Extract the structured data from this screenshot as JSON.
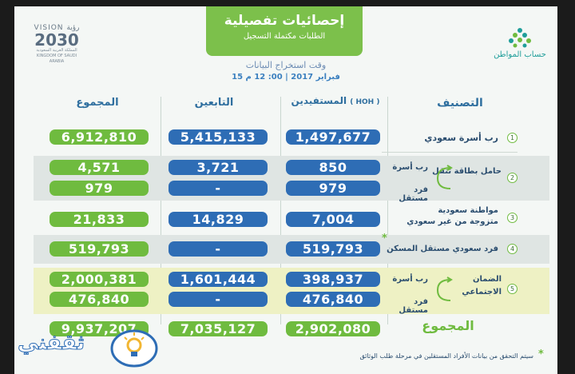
{
  "header": {
    "title": "إحصائيات تفصيلية",
    "subtitle": "الطلبات مكتملة التسجيل",
    "time_label": "وقت استخراج البيانات",
    "time_value": "15 فبراير 2017 | 00: 12 م"
  },
  "vision": {
    "top": "VISION رؤية",
    "year": "2030",
    "sub_ar": "المملكة العربية السعودية",
    "sub_en": "KINGDOM OF SAUDI ARABIA"
  },
  "logo": {
    "text": "حساب المواطن"
  },
  "columns": {
    "classification": "التصنيف",
    "beneficiaries": "المستفيدين",
    "hoh": "( HOH )",
    "dependents": "التابعين",
    "total": "المجموع"
  },
  "rows": [
    {
      "num": "1",
      "label": "رب أسرة سعودي",
      "beneficiaries": "1,497,677",
      "dependents": "5,415,133",
      "total": "6,912,810"
    },
    {
      "num": "2",
      "label": "حامل بطاقة تنقل",
      "sub1": "رب أسرة",
      "sub2": "فرد مستقل",
      "beneficiaries_a": "850",
      "dependents_a": "3,721",
      "total_a": "4,571",
      "beneficiaries_b": "979",
      "dependents_b": "-",
      "total_b": "979"
    },
    {
      "num": "3",
      "label1": "مواطنة سعودية",
      "label2": "متزوجة من غير سعودي",
      "beneficiaries": "7,004",
      "dependents": "14,829",
      "total": "21,833"
    },
    {
      "num": "4",
      "label": "فرد سعودي مستقل المسكن",
      "star": "*",
      "beneficiaries": "519,793",
      "dependents": "-",
      "total": "519,793"
    },
    {
      "num": "5",
      "label1": "الضمان",
      "label2": "الاجتماعي",
      "sub1": "رب أسرة",
      "sub2": "فرد مستقل",
      "beneficiaries_a": "398,937",
      "dependents_a": "1,601,444",
      "total_a": "2,000,381",
      "beneficiaries_b": "476,840",
      "dependents_b": "-",
      "total_b": "476,840"
    }
  ],
  "totals": {
    "label": "المجموع",
    "beneficiaries": "2,902,080",
    "dependents": "7,035,127",
    "total": "9,937,207"
  },
  "note": {
    "star": "*",
    "text": "سيتم التحقق من بيانات الأفراد المستقلين في مرحلة طلب الوثائق"
  },
  "watermark": {
    "text": "ثقفني"
  },
  "colors": {
    "green": "#6fbb3f",
    "blue": "#2e6db5",
    "dark_text": "#2a4d6f"
  }
}
